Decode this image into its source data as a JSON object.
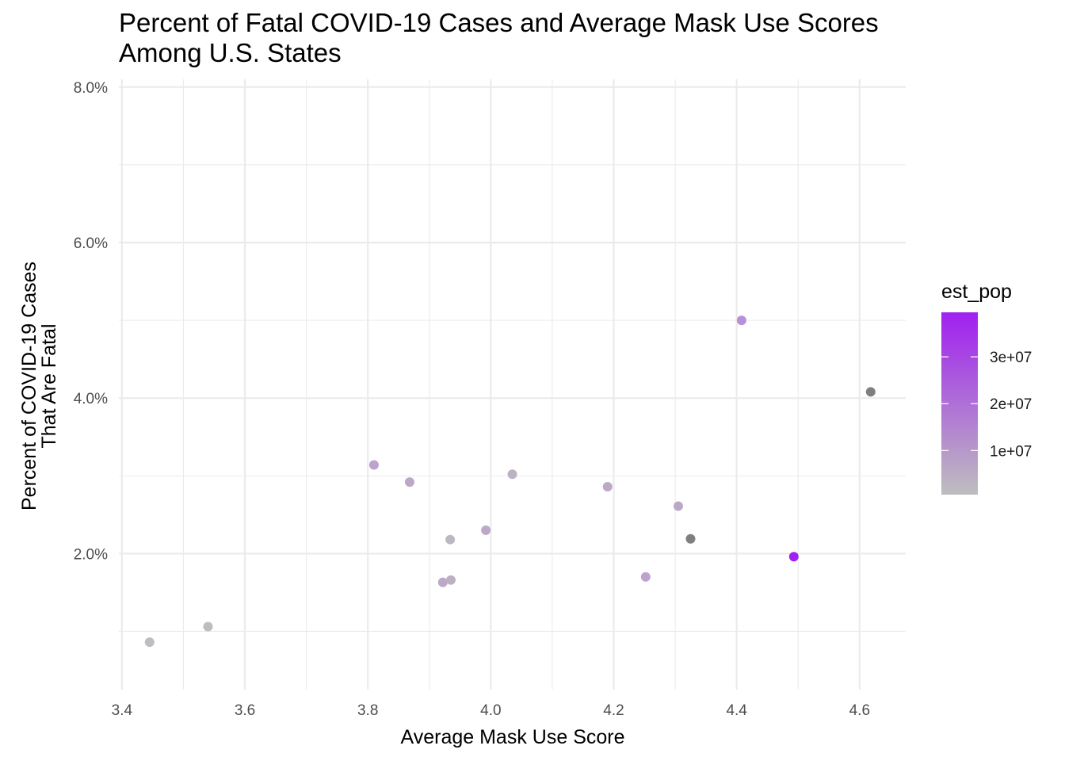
{
  "chart_data": {
    "type": "scatter",
    "title": [
      "Percent of Fatal COVID-19 Cases and Average Mask Use Scores",
      "Among U.S. States"
    ],
    "xlabel": "Average Mask Use Score",
    "ylabel": [
      "Percent of COVID-19 Cases",
      "That Are Fatal"
    ],
    "xlim": [
      3.395,
      4.675
    ],
    "ylim": [
      0.25,
      8.1
    ],
    "x_ticks": [
      3.4,
      3.6,
      3.8,
      4.0,
      4.2,
      4.4,
      4.6
    ],
    "x_tick_labels": [
      "3.4",
      "3.6",
      "3.8",
      "4.0",
      "4.2",
      "4.4",
      "4.6"
    ],
    "y_ticks": [
      2,
      4,
      6,
      8
    ],
    "y_tick_labels": [
      "2.0%",
      "4.0%",
      "6.0%",
      "8.0%"
    ],
    "grid": true,
    "points": [
      {
        "x": 3.445,
        "y": 0.86,
        "color": "#c0bcc2"
      },
      {
        "x": 3.54,
        "y": 1.06,
        "color": "#c0bcc2"
      },
      {
        "x": 3.81,
        "y": 3.14,
        "color": "#bea1ce"
      },
      {
        "x": 3.868,
        "y": 2.92,
        "color": "#bba8c8"
      },
      {
        "x": 3.922,
        "y": 1.63,
        "color": "#bca8c8"
      },
      {
        "x": 3.934,
        "y": 2.18,
        "color": "#bdb7c1"
      },
      {
        "x": 3.935,
        "y": 1.66,
        "color": "#bcb0c3"
      },
      {
        "x": 3.992,
        "y": 2.3,
        "color": "#bba9c7"
      },
      {
        "x": 4.035,
        "y": 3.02,
        "color": "#bdb2c3"
      },
      {
        "x": 4.19,
        "y": 2.86,
        "color": "#bba9c8"
      },
      {
        "x": 4.252,
        "y": 1.7,
        "color": "#bca2cc"
      },
      {
        "x": 4.305,
        "y": 2.61,
        "color": "#bba8c8"
      },
      {
        "x": 4.325,
        "y": 2.19,
        "color": "#7f7f7f"
      },
      {
        "x": 4.408,
        "y": 5.0,
        "color": "#b98fd7"
      },
      {
        "x": 4.493,
        "y": 1.96,
        "color": "#a020f0"
      },
      {
        "x": 4.618,
        "y": 4.08,
        "color": "#7f7f7f"
      }
    ],
    "legend": {
      "title": "est_pop",
      "placement": "right",
      "colors": [
        "#a020f0",
        "#bebebe"
      ],
      "min": 580000,
      "max": 39500000,
      "ticks": [
        10000000,
        20000000,
        30000000
      ],
      "tick_labels": [
        "1e+07",
        "2e+07",
        "3e+07"
      ]
    }
  }
}
